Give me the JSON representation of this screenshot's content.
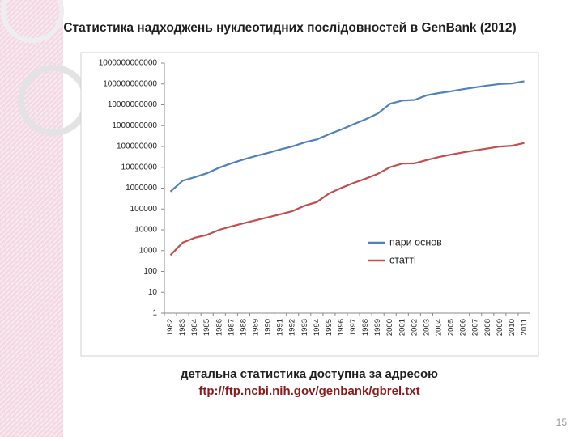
{
  "title": "Статистика надходжень нуклеотидних послідовностей в GenBank (2012)",
  "chart_data": {
    "type": "line",
    "categories": [
      "1982",
      "1983",
      "1984",
      "1985",
      "1986",
      "1987",
      "1988",
      "1989",
      "1990",
      "1991",
      "1992",
      "1993",
      "1994",
      "1995",
      "1996",
      "1997",
      "1998",
      "1999",
      "2000",
      "2001",
      "2002",
      "2003",
      "2004",
      "2005",
      "2006",
      "2007",
      "2008",
      "2009",
      "2010",
      "2011"
    ],
    "series": [
      {
        "name": "пари основ",
        "color": "#4f81bd",
        "values": [
          680338,
          2274029,
          3368765,
          5204420,
          9615371,
          15514776,
          23800000,
          34762585,
          49179285,
          71947426,
          101008486,
          157152442,
          217102462,
          384939485,
          651972984,
          1160300687,
          2008761784,
          3841163011,
          11101066288,
          15849921438,
          17089143893,
          28507990166,
          36553368485,
          44575745176,
          56037734462,
          69019290705,
          83874179730,
          99116431942,
          106073709569,
          135117731375
        ]
      },
      {
        "name": "статті",
        "color": "#c0504d",
        "values": [
          606,
          2427,
          4175,
          5700,
          9978,
          14584,
          20579,
          28791,
          39533,
          55627,
          78608,
          143492,
          215273,
          555694,
          1021211,
          1765847,
          2837897,
          4864570,
          10106023,
          14976310,
          15465325,
          22318883,
          30968418,
          40604319,
          52016762,
          64893747,
          80388382,
          98868465,
          108431692,
          146413798
        ]
      }
    ],
    "ylim": [
      1,
      1000000000000
    ],
    "yticks": [
      1,
      10,
      100,
      1000,
      10000,
      100000,
      1000000,
      10000000,
      100000000,
      1000000000,
      10000000000,
      100000000000,
      1000000000000
    ],
    "log_scale": true,
    "grid": false,
    "legend": "right"
  },
  "caption": "детальна статистика доступна за адресою",
  "link": "ftp://ftp.ncbi.nih.gov/genbank/gbrel.txt",
  "page_number": "15"
}
